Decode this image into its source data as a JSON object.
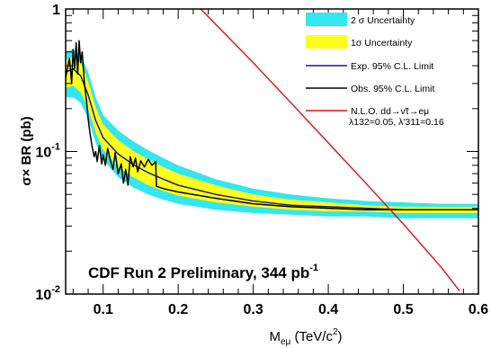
{
  "chart_data": {
    "type": "line",
    "xlabel_main": "M",
    "xlabel_sub": "eμ",
    "xlabel_unit_open": " (TeV/c",
    "xlabel_unit_sup": "2",
    "xlabel_unit_close": ")",
    "ylabel": "σ× BR (pb)",
    "xlim": [
      0.05,
      0.6
    ],
    "ylim": [
      0.01,
      1
    ],
    "yscale": "log",
    "x_ticks": [
      "0.1",
      "0.2",
      "0.3",
      "0.4",
      "0.5",
      "0.6"
    ],
    "x_tick_values": [
      0.1,
      0.2,
      0.3,
      0.4,
      0.5,
      0.6
    ],
    "y_ticks": [
      {
        "value": 1,
        "base": "1",
        "exp": ""
      },
      {
        "value": 0.1,
        "base": "10",
        "exp": "-1"
      },
      {
        "value": 0.01,
        "base": "10",
        "exp": "-2"
      }
    ],
    "annotation_main": "CDF Run 2 Preliminary, 344 pb",
    "annotation_sup": "-1",
    "legend_position": "top-right",
    "legend": [
      {
        "key": "band2",
        "label": "2 σ Uncertainty",
        "color": "#33e6f0",
        "style": "box"
      },
      {
        "key": "band1",
        "label": "1σ Uncertainty",
        "color": "#ffff1a",
        "style": "box"
      },
      {
        "key": "exp",
        "label": "Exp. 95% C.L. Limit",
        "color": "#1a1a9c",
        "style": "line"
      },
      {
        "key": "obs",
        "label": "Obs. 95% C.L. Limit",
        "color": "#000000",
        "style": "line"
      },
      {
        "key": "nlo",
        "label": "N.L.O. dd→ν̃τ→eμ",
        "color": "#e01010",
        "style": "line"
      }
    ],
    "legend_coupling": "λ132=0.05, λ'311=0.16",
    "x": [
      0.05,
      0.06,
      0.07,
      0.08,
      0.09,
      0.1,
      0.12,
      0.14,
      0.16,
      0.18,
      0.2,
      0.25,
      0.3,
      0.35,
      0.4,
      0.45,
      0.5,
      0.55,
      0.6
    ],
    "series": [
      {
        "name": "2 σ Uncertainty",
        "key": "band2",
        "upper": [
          0.5,
          0.52,
          0.48,
          0.36,
          0.24,
          0.18,
          0.14,
          0.118,
          0.102,
          0.09,
          0.08,
          0.064,
          0.055,
          0.05,
          0.047,
          0.045,
          0.044,
          0.043,
          0.043
        ],
        "lower": [
          0.24,
          0.24,
          0.22,
          0.17,
          0.115,
          0.088,
          0.066,
          0.056,
          0.05,
          0.046,
          0.043,
          0.039,
          0.037,
          0.036,
          0.035,
          0.035,
          0.034,
          0.034,
          0.034
        ]
      },
      {
        "name": "1σ Uncertainty",
        "key": "band1",
        "upper": [
          0.44,
          0.46,
          0.42,
          0.31,
          0.205,
          0.155,
          0.12,
          0.101,
          0.088,
          0.078,
          0.07,
          0.058,
          0.05,
          0.046,
          0.044,
          0.042,
          0.041,
          0.041,
          0.041
        ],
        "lower": [
          0.28,
          0.29,
          0.26,
          0.2,
          0.135,
          0.103,
          0.078,
          0.066,
          0.058,
          0.053,
          0.049,
          0.044,
          0.041,
          0.039,
          0.038,
          0.038,
          0.037,
          0.037,
          0.037
        ]
      },
      {
        "name": "Exp. 95% C.L. Limit",
        "key": "exp",
        "values": [
          0.36,
          0.38,
          0.34,
          0.25,
          0.165,
          0.125,
          0.096,
          0.081,
          0.071,
          0.064,
          0.058,
          0.05,
          0.045,
          0.042,
          0.041,
          0.04,
          0.039,
          0.039,
          0.039
        ]
      },
      {
        "name": "Obs. 95% C.L. Limit",
        "key": "obs",
        "x": [
          0.05,
          0.055,
          0.058,
          0.06,
          0.062,
          0.064,
          0.066,
          0.068,
          0.07,
          0.072,
          0.075,
          0.078,
          0.08,
          0.082,
          0.085,
          0.088,
          0.09,
          0.092,
          0.095,
          0.098,
          0.1,
          0.103,
          0.106,
          0.11,
          0.113,
          0.116,
          0.12,
          0.124,
          0.127,
          0.13,
          0.133,
          0.136,
          0.14,
          0.143,
          0.146,
          0.15,
          0.155,
          0.16,
          0.165,
          0.17,
          0.171,
          0.18,
          0.2,
          0.25,
          0.3,
          0.35,
          0.4,
          0.45,
          0.5,
          0.55,
          0.6
        ],
        "values": [
          0.33,
          0.45,
          0.3,
          0.52,
          0.38,
          0.58,
          0.35,
          0.6,
          0.42,
          0.5,
          0.3,
          0.22,
          0.17,
          0.14,
          0.11,
          0.092,
          0.1,
          0.085,
          0.11,
          0.082,
          0.095,
          0.08,
          0.105,
          0.085,
          0.075,
          0.098,
          0.07,
          0.082,
          0.06,
          0.075,
          0.058,
          0.092,
          0.078,
          0.09,
          0.072,
          0.086,
          0.078,
          0.088,
          0.08,
          0.085,
          0.057,
          0.055,
          0.052,
          0.047,
          0.043,
          0.041,
          0.04,
          0.039,
          0.039,
          0.039,
          0.039
        ]
      },
      {
        "name": "N.L.O. dd→ν̃τ→eμ",
        "key": "nlo",
        "x": [
          0.23,
          0.25,
          0.3,
          0.35,
          0.4,
          0.45,
          0.5,
          0.55,
          0.575
        ],
        "values": [
          1.0,
          0.78,
          0.42,
          0.22,
          0.115,
          0.06,
          0.031,
          0.0155,
          0.0105
        ]
      }
    ]
  }
}
